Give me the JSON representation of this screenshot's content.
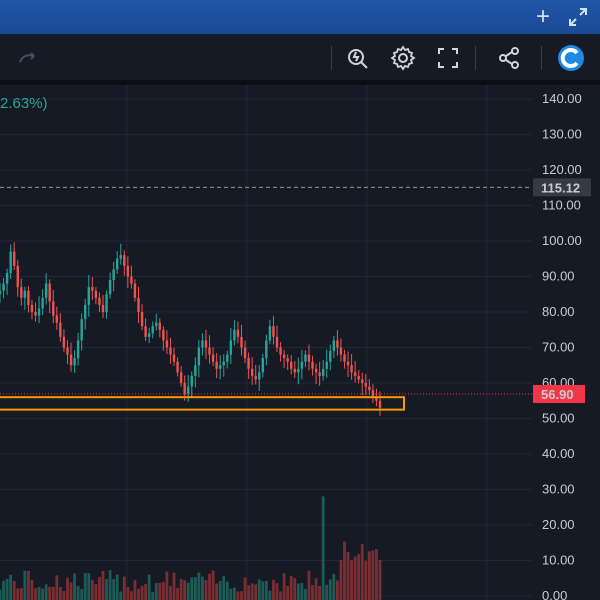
{
  "titlebar": {
    "add_icon": "plus-icon",
    "expand_icon": "expand-arrows-icon"
  },
  "toolbar": {
    "redo_icon": "redo-arrow-icon",
    "items": [
      "magic-search-icon",
      "gear-icon",
      "fullscreen-icon",
      "share-icon",
      "app-logo-icon"
    ]
  },
  "header": {
    "change": "2.63%)"
  },
  "colors": {
    "up": "#26a69a",
    "down": "#ef5350",
    "price_tag": "#f23645",
    "highlight": "#ff9800",
    "background": "#161a25"
  },
  "chart_data": {
    "type": "candlestick",
    "price_axis": {
      "ticks": [
        "140.00",
        "130.00",
        "120.00",
        "110.00",
        "100.00",
        "90.00",
        "80.00",
        "70.00",
        "60.00",
        "50.00",
        "40.00",
        "30.00",
        "20.00",
        "10.00",
        "0.00"
      ],
      "range": [
        0,
        140
      ]
    },
    "reference_line": {
      "value": 115.12,
      "label": "115.12"
    },
    "last_price": {
      "value": 56.9,
      "label": "56.90"
    },
    "highlight_zone": {
      "low": 52.5,
      "high": 56.0
    },
    "close_series": [
      86,
      88,
      91,
      97,
      93,
      87,
      84,
      86,
      82,
      80,
      79,
      81,
      84,
      88,
      83,
      79,
      77,
      73,
      70,
      68,
      65,
      67,
      72,
      78,
      82,
      87,
      86,
      84,
      82,
      80,
      85,
      89,
      92,
      95,
      96,
      93,
      90,
      88,
      84,
      80,
      76,
      73,
      74,
      76,
      77,
      75,
      72,
      70,
      68,
      66,
      63,
      60,
      57,
      59,
      62,
      65,
      70,
      72,
      70,
      68,
      66,
      64,
      65,
      66,
      68,
      72,
      75,
      73,
      70,
      67,
      64,
      62,
      61,
      63,
      67,
      72,
      76,
      73,
      70,
      68,
      67,
      66,
      64,
      63,
      64,
      66,
      68,
      66,
      64,
      63,
      62,
      64,
      66,
      69,
      72,
      70,
      68,
      66,
      65,
      63,
      62,
      61,
      60,
      59,
      58,
      56,
      55,
      53
    ]
  }
}
